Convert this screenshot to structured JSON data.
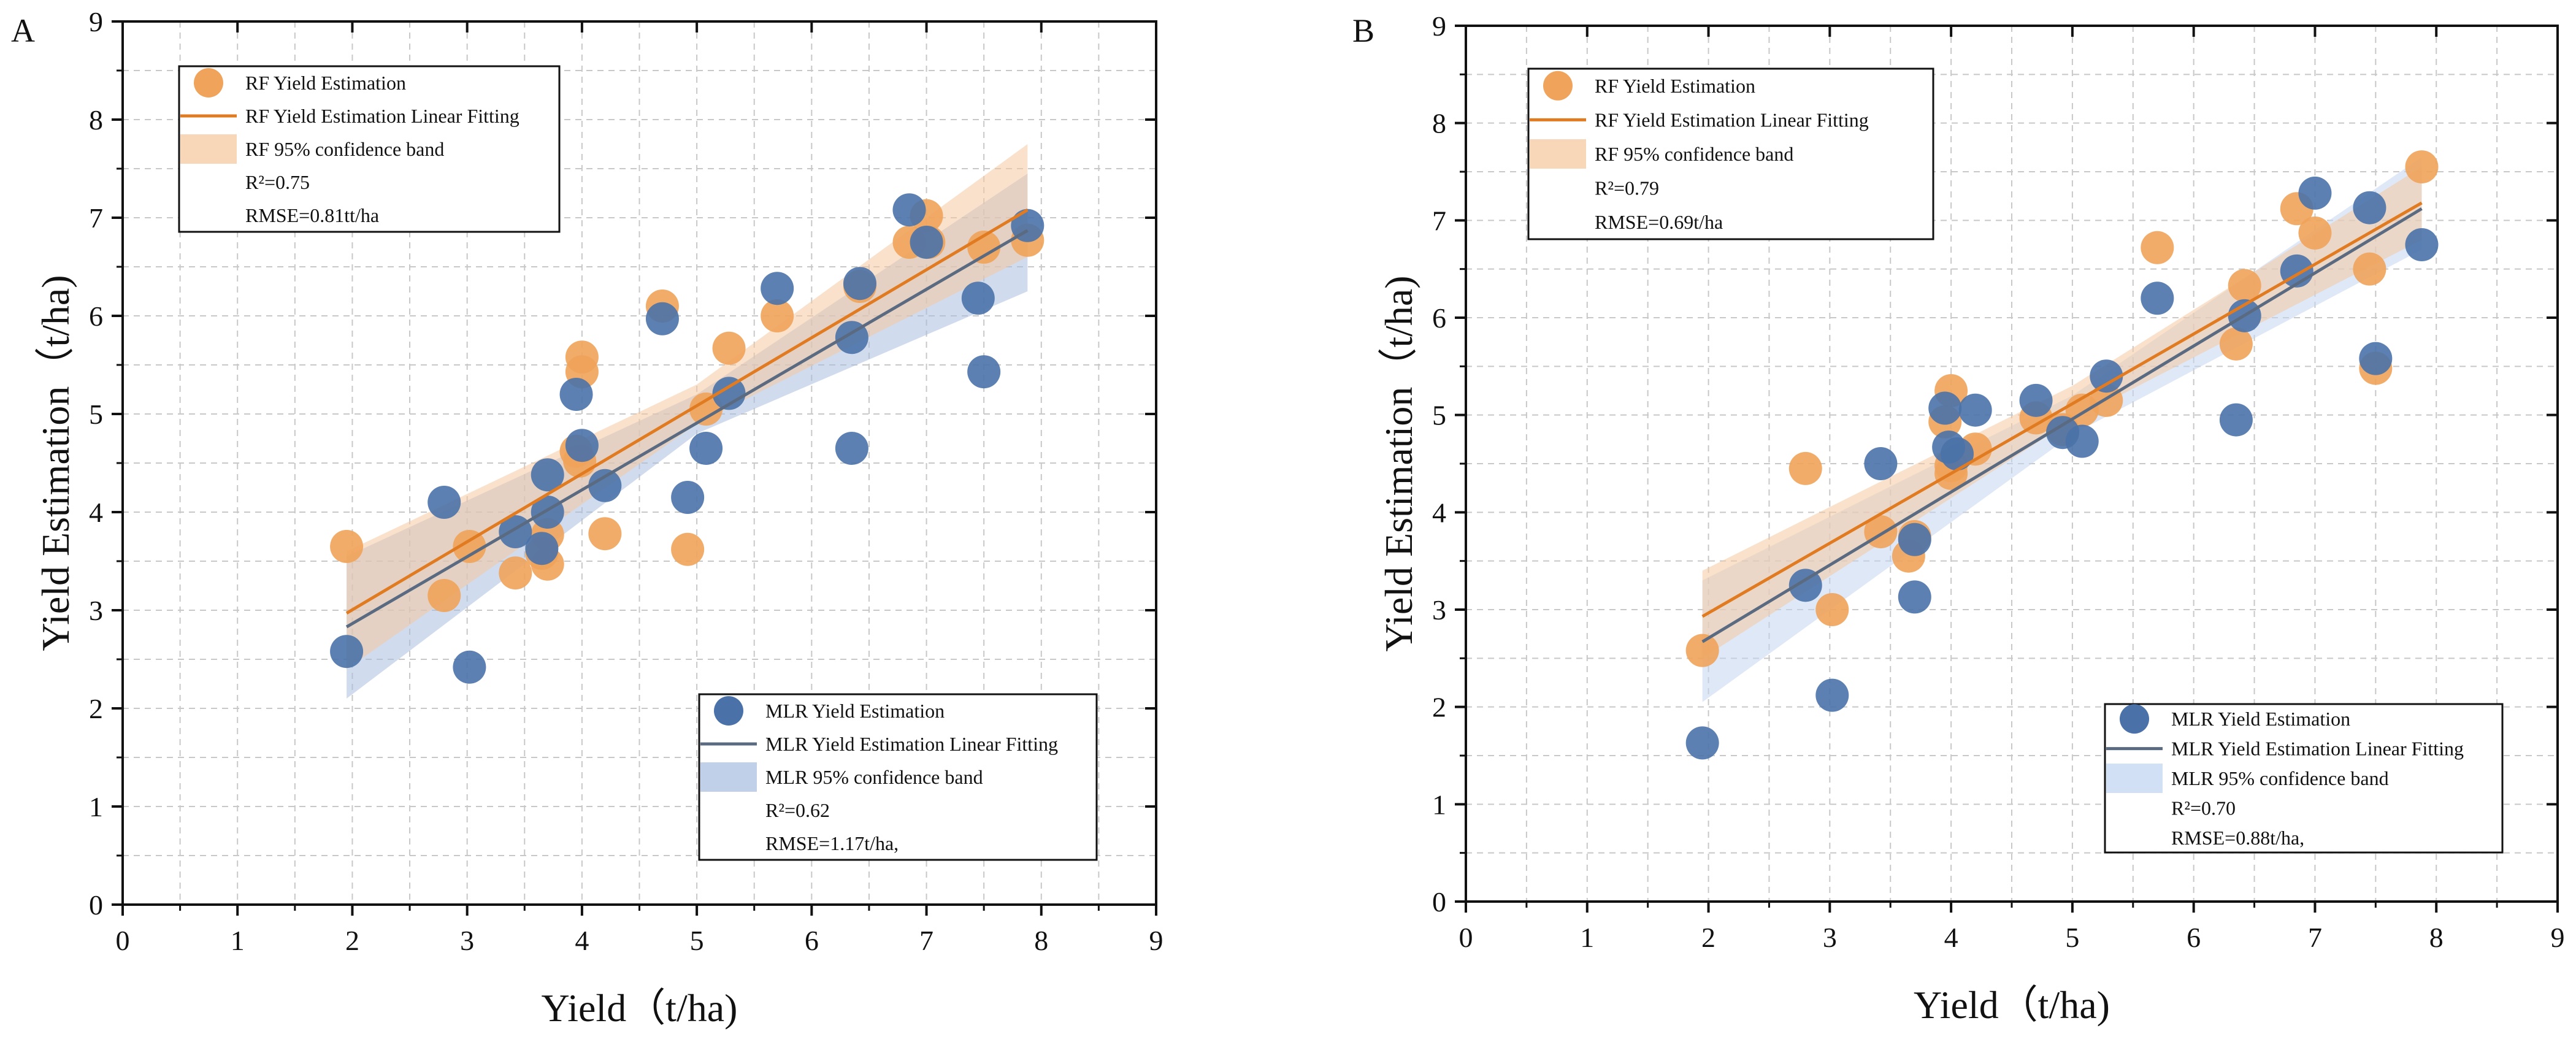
{
  "chart_data": [
    {
      "type": "scatter",
      "panel_label": "A",
      "xlabel": "Yield（t/ha)",
      "ylabel": "Yield Estimation（t/ha)",
      "xlim": [
        0,
        9
      ],
      "ylim": [
        0,
        9
      ],
      "xticks": [
        "0",
        "1",
        "2",
        "3",
        "4",
        "5",
        "6",
        "7",
        "8",
        "9"
      ],
      "yticks": [
        "0",
        "1",
        "2",
        "3",
        "4",
        "5",
        "6",
        "7",
        "8",
        "9"
      ],
      "grid": true,
      "series": [
        {
          "name": "RF Yield Estimation",
          "color": "#f0a35a",
          "fit_color": "#e07b22",
          "band_color": "#f6c8a0",
          "fit": [
            [
              1.95,
              2.97
            ],
            [
              7.88,
              7.08
            ]
          ],
          "band": {
            "x": [
              1.95,
              5.0,
              7.88
            ],
            "lower": [
              2.4,
              4.9,
              6.6
            ],
            "upper": [
              3.6,
              5.3,
              7.75
            ]
          },
          "points": [
            [
              1.95,
              3.65
            ],
            [
              2.8,
              3.15
            ],
            [
              3.02,
              3.65
            ],
            [
              3.42,
              3.38
            ],
            [
              3.65,
              3.58
            ],
            [
              3.7,
              3.77
            ],
            [
              3.7,
              3.47
            ],
            [
              3.95,
              4.62
            ],
            [
              3.98,
              4.52
            ],
            [
              4.0,
              5.58
            ],
            [
              4.0,
              5.43
            ],
            [
              4.2,
              3.78
            ],
            [
              4.7,
              6.1
            ],
            [
              4.92,
              3.62
            ],
            [
              5.08,
              5.05
            ],
            [
              5.28,
              5.67
            ],
            [
              5.7,
              6.0
            ],
            [
              6.42,
              6.3
            ],
            [
              6.85,
              6.75
            ],
            [
              7.0,
              7.02
            ],
            [
              7.02,
              6.75
            ],
            [
              7.5,
              6.7
            ],
            [
              7.88,
              6.77
            ]
          ]
        },
        {
          "name": "MLR Yield Estimation",
          "color": "#4a72a8",
          "fit_color": "#5a6a80",
          "band_color": "#a9c0e0",
          "fit": [
            [
              1.95,
              2.83
            ],
            [
              7.88,
              6.87
            ]
          ],
          "band": {
            "x": [
              1.95,
              5.0,
              7.88
            ],
            "lower": [
              2.1,
              4.8,
              6.25
            ],
            "upper": [
              3.55,
              5.2,
              7.45
            ]
          },
          "points": [
            [
              1.95,
              2.58
            ],
            [
              2.8,
              4.1
            ],
            [
              3.02,
              2.42
            ],
            [
              3.42,
              3.8
            ],
            [
              3.65,
              3.63
            ],
            [
              3.7,
              4.38
            ],
            [
              3.7,
              4.0
            ],
            [
              3.95,
              5.2
            ],
            [
              4.0,
              4.68
            ],
            [
              4.2,
              4.27
            ],
            [
              4.7,
              5.97
            ],
            [
              4.92,
              4.15
            ],
            [
              5.08,
              4.65
            ],
            [
              5.28,
              5.21
            ],
            [
              5.7,
              6.28
            ],
            [
              6.35,
              5.78
            ],
            [
              6.35,
              4.65
            ],
            [
              6.42,
              6.33
            ],
            [
              6.85,
              7.08
            ],
            [
              7.0,
              6.75
            ],
            [
              7.45,
              6.18
            ],
            [
              7.5,
              5.43
            ],
            [
              7.88,
              6.92
            ]
          ]
        }
      ],
      "legends": [
        {
          "position": "top-left",
          "entries": [
            {
              "kind": "marker",
              "series": 0,
              "label": "RF Yield Estimation"
            },
            {
              "kind": "line",
              "series": 0,
              "label": "RF Yield Estimation Linear Fitting"
            },
            {
              "kind": "band",
              "series": 0,
              "label": "RF 95% confidence band"
            },
            {
              "kind": "text",
              "label": "R²=0.75"
            },
            {
              "kind": "text",
              "label": "RMSE=0.81tt/ha"
            }
          ]
        },
        {
          "position": "bottom-right",
          "entries": [
            {
              "kind": "marker",
              "series": 1,
              "label": "MLR Yield Estimation"
            },
            {
              "kind": "line",
              "series": 1,
              "label": "MLR Yield Estimation Linear Fitting"
            },
            {
              "kind": "band",
              "series": 1,
              "label": "MLR 95% confidence band"
            },
            {
              "kind": "text",
              "label": "R²=0.62"
            },
            {
              "kind": "text",
              "label": "RMSE=1.17t/ha,"
            }
          ]
        }
      ]
    },
    {
      "type": "scatter",
      "panel_label": "B",
      "xlabel": "Yield（t/ha)",
      "ylabel": "Yield Estimation（t/ha)",
      "xlim": [
        0,
        9
      ],
      "ylim": [
        0,
        9
      ],
      "xticks": [
        "0",
        "1",
        "2",
        "3",
        "4",
        "5",
        "6",
        "7",
        "8",
        "9"
      ],
      "yticks": [
        "0",
        "1",
        "2",
        "3",
        "4",
        "5",
        "6",
        "7",
        "8",
        "9"
      ],
      "grid": true,
      "series": [
        {
          "name": "RF Yield Estimation",
          "color": "#f0a35a",
          "fit_color": "#e07b22",
          "band_color": "#f6c8a0",
          "fit": [
            [
              1.95,
              2.93
            ],
            [
              7.88,
              7.18
            ]
          ],
          "band": {
            "x": [
              1.95,
              5.0,
              7.88
            ],
            "lower": [
              2.5,
              4.95,
              6.8
            ],
            "upper": [
              3.4,
              5.3,
              7.55
            ]
          },
          "points": [
            [
              1.95,
              2.58
            ],
            [
              2.8,
              4.45
            ],
            [
              3.02,
              3.0
            ],
            [
              3.42,
              3.8
            ],
            [
              3.65,
              3.55
            ],
            [
              3.7,
              3.75
            ],
            [
              3.95,
              4.93
            ],
            [
              4.0,
              5.25
            ],
            [
              4.0,
              4.48
            ],
            [
              4.0,
              4.4
            ],
            [
              4.2,
              4.65
            ],
            [
              4.7,
              4.97
            ],
            [
              4.92,
              4.85
            ],
            [
              5.08,
              5.05
            ],
            [
              5.28,
              5.15
            ],
            [
              5.7,
              6.72
            ],
            [
              6.35,
              5.73
            ],
            [
              6.42,
              6.33
            ],
            [
              6.85,
              7.12
            ],
            [
              7.0,
              6.87
            ],
            [
              7.45,
              6.5
            ],
            [
              7.5,
              5.48
            ],
            [
              7.88,
              7.55
            ]
          ]
        },
        {
          "name": "MLR Yield Estimation",
          "color": "#4a72a8",
          "fit_color": "#5a6a80",
          "band_color": "#c2d6f0",
          "fit": [
            [
              1.95,
              2.67
            ],
            [
              7.88,
              7.12
            ]
          ],
          "band": {
            "x": [
              1.95,
              5.0,
              7.88
            ],
            "lower": [
              2.05,
              4.8,
              6.7
            ],
            "upper": [
              3.3,
              5.2,
              7.65
            ]
          },
          "points": [
            [
              1.95,
              1.63
            ],
            [
              2.8,
              3.25
            ],
            [
              3.02,
              2.12
            ],
            [
              3.42,
              4.5
            ],
            [
              3.7,
              3.13
            ],
            [
              3.7,
              3.72
            ],
            [
              3.95,
              5.07
            ],
            [
              3.98,
              4.67
            ],
            [
              4.05,
              4.6
            ],
            [
              4.2,
              5.05
            ],
            [
              4.7,
              5.15
            ],
            [
              4.92,
              4.82
            ],
            [
              5.08,
              4.73
            ],
            [
              5.28,
              5.4
            ],
            [
              5.7,
              6.2
            ],
            [
              6.35,
              4.95
            ],
            [
              6.42,
              6.02
            ],
            [
              6.85,
              6.48
            ],
            [
              7.0,
              7.28
            ],
            [
              7.45,
              7.13
            ],
            [
              7.5,
              5.58
            ],
            [
              7.88,
              6.75
            ]
          ]
        }
      ],
      "legends": [
        {
          "position": "top-left",
          "entries": [
            {
              "kind": "marker",
              "series": 0,
              "label": "RF Yield Estimation"
            },
            {
              "kind": "line",
              "series": 0,
              "label": "RF Yield Estimation Linear Fitting"
            },
            {
              "kind": "band",
              "series": 0,
              "label": "RF 95% confidence band"
            },
            {
              "kind": "text",
              "label": "R²=0.79"
            },
            {
              "kind": "text",
              "label": "RMSE=0.69t/ha"
            }
          ]
        },
        {
          "position": "bottom-right",
          "entries": [
            {
              "kind": "marker",
              "series": 1,
              "label": "MLR Yield Estimation"
            },
            {
              "kind": "line",
              "series": 1,
              "label": "MLR Yield Estimation Linear Fitting"
            },
            {
              "kind": "band",
              "series": 1,
              "label": "MLR 95% confidence band"
            },
            {
              "kind": "text",
              "label": "R²=0.70"
            },
            {
              "kind": "text",
              "label": "RMSE=0.88t/ha,"
            }
          ]
        }
      ]
    }
  ]
}
